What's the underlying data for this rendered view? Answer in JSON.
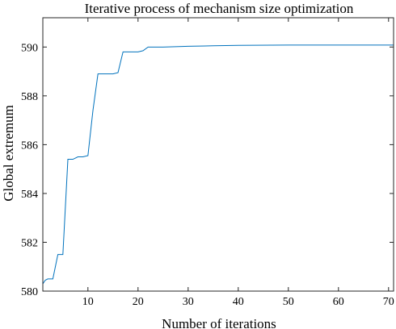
{
  "chart_data": {
    "type": "line",
    "title": "Iterative process of mechanism size optimization",
    "xlabel": "Number of iterations",
    "ylabel": "Global extremum",
    "xlim": [
      1,
      71
    ],
    "ylim": [
      580,
      591.2
    ],
    "x_ticks": [
      10,
      20,
      30,
      40,
      50,
      60,
      70
    ],
    "y_ticks": [
      580,
      582,
      584,
      586,
      588,
      590
    ],
    "grid": false,
    "legend": "none",
    "line_color": "#0072BD",
    "series": [
      {
        "x": [
          1,
          1.5,
          2,
          3,
          4,
          5,
          6,
          7,
          8,
          9,
          10,
          11,
          12,
          13,
          14,
          15,
          16,
          17,
          18,
          19,
          20,
          21,
          22,
          25,
          30,
          35,
          40,
          50,
          60,
          70,
          71
        ],
        "values": [
          580.3,
          580.45,
          580.5,
          580.5,
          581.5,
          581.5,
          585.4,
          585.4,
          585.5,
          585.5,
          585.55,
          587.4,
          588.9,
          588.9,
          588.9,
          588.9,
          588.95,
          589.8,
          589.8,
          589.8,
          589.8,
          589.85,
          590.0,
          590.0,
          590.03,
          590.05,
          590.07,
          590.08,
          590.08,
          590.08,
          590.08
        ]
      }
    ]
  }
}
